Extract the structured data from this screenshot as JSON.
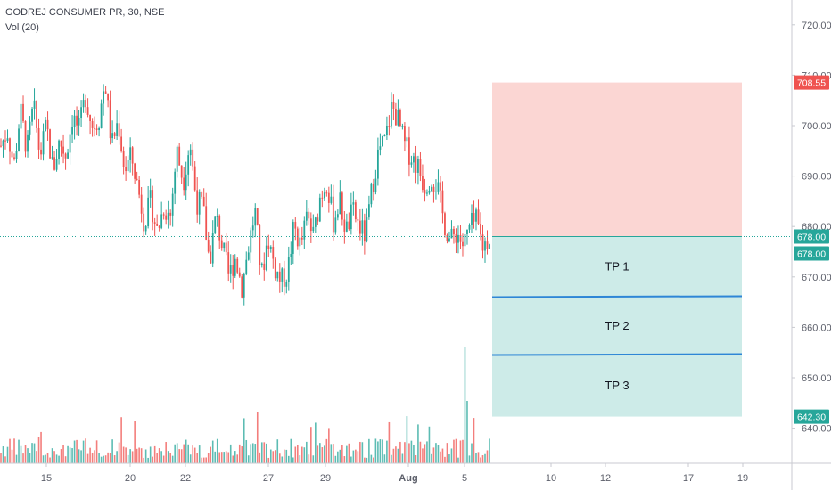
{
  "header": {
    "symbol_line": "GODREJ CONSUMER PR, 30, NSE",
    "volume_line": "Vol (20)"
  },
  "chart_data": {
    "type": "candlestick",
    "symbol": "GODREJ CONSUMER PR",
    "interval": "30",
    "exchange": "NSE",
    "y_axis_labels": [
      "720.00",
      "710.00",
      "700.00",
      "690.00",
      "680.00",
      "670.00",
      "660.00",
      "650.00",
      "640.00"
    ],
    "y_axis_values": [
      720,
      710,
      700,
      690,
      680,
      670,
      660,
      650,
      640
    ],
    "ylim": [
      631,
      725
    ],
    "x_axis_labels": [
      "15",
      "20",
      "22",
      "27",
      "29",
      "Aug",
      "5",
      "10",
      "12",
      "17",
      "19"
    ],
    "last_price": {
      "value": 678.0,
      "label": "678.00"
    },
    "position": {
      "entry": {
        "value": 678.0,
        "label": "678.00",
        "color": "#26a69a"
      },
      "stop": {
        "value": 708.55,
        "label": "708.55",
        "color": "#ef5350"
      },
      "target": {
        "value": 642.3,
        "label": "642.30",
        "color": "#26a69a"
      },
      "take_profits": [
        {
          "name": "TP 1",
          "value": 678.0
        },
        {
          "name": "TP 2",
          "value": 666.0
        },
        {
          "name": "TP 3",
          "value": 654.5
        }
      ]
    },
    "candles_path": [
      696,
      699,
      692,
      703,
      695,
      704,
      694,
      700,
      691,
      697,
      694,
      702,
      699,
      706,
      700,
      701,
      709,
      696,
      701,
      691,
      694,
      688,
      681,
      685,
      679,
      684,
      682,
      695,
      689,
      697,
      685,
      684,
      673,
      682,
      676,
      670,
      674,
      668,
      676,
      683,
      670,
      678,
      672,
      669,
      671,
      680,
      676,
      682,
      678,
      686,
      689,
      681,
      685,
      679,
      683,
      680,
      678,
      688,
      695,
      697,
      704,
      701,
      696,
      694,
      692,
      688,
      690,
      688,
      681,
      677,
      679,
      676,
      680,
      681,
      676,
      678
    ],
    "colors": {
      "up": "#26a69a",
      "down": "#ef5350",
      "stop_zone": "#fbd6d3",
      "target_zone": "#cdebe8",
      "tp_line": "#2e86d6"
    }
  }
}
